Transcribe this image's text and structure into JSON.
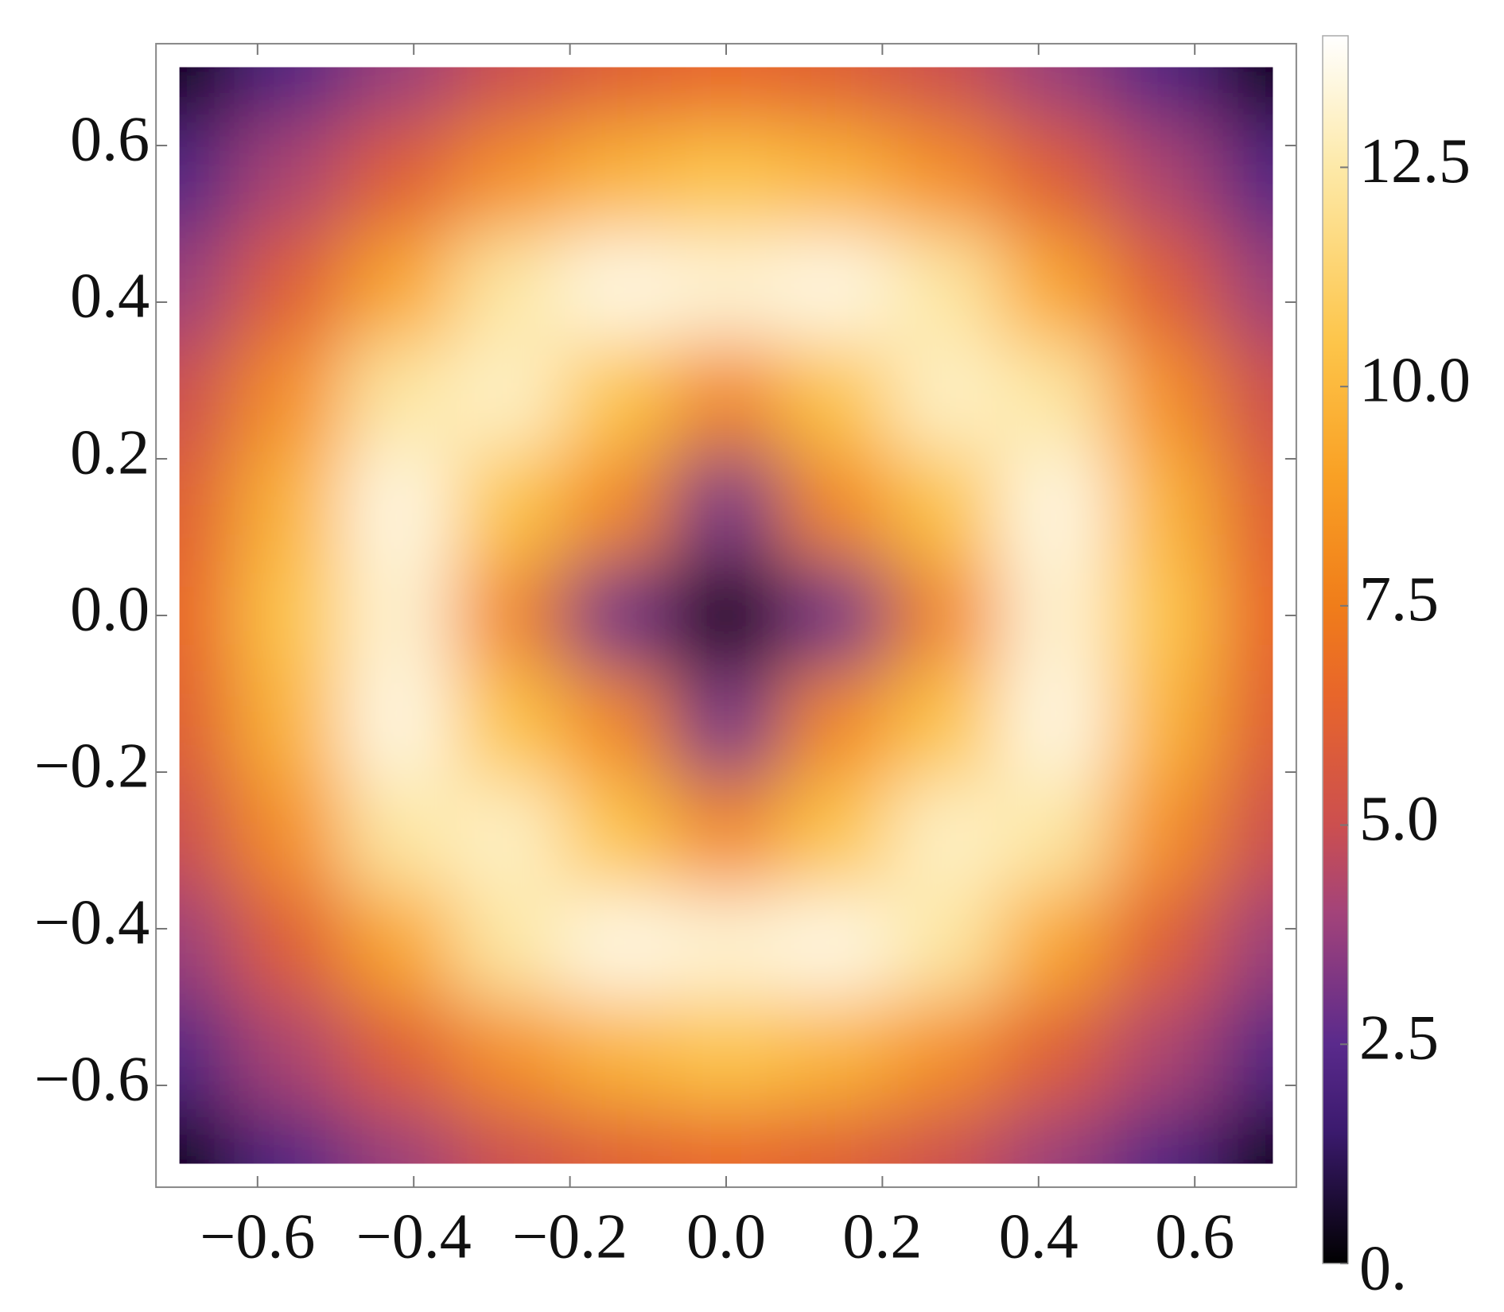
{
  "chart_data": {
    "type": "heatmap",
    "x": [
      -0.7,
      -0.56,
      -0.42,
      -0.28,
      -0.14,
      0,
      0.14,
      0.28,
      0.42,
      0.56,
      0.7
    ],
    "y": [
      -0.7,
      -0.56,
      -0.42,
      -0.28,
      -0.14,
      0,
      0.14,
      0.28,
      0.42,
      0.56,
      0.7
    ],
    "z": [
      [
        0,
        2.2,
        3.8,
        5,
        6,
        6.5,
        6,
        5,
        3.8,
        2.2,
        0
      ],
      [
        2.2,
        4.2,
        6,
        8.3,
        9.8,
        10.5,
        9.8,
        8.3,
        6,
        4.2,
        2.2
      ],
      [
        3.8,
        6,
        9.2,
        12.4,
        13.5,
        13.2,
        13.5,
        12.4,
        9.2,
        6,
        3.8
      ],
      [
        5,
        8.3,
        12.4,
        13,
        10.5,
        8,
        10.5,
        13,
        12.4,
        8.3,
        5
      ],
      [
        6,
        9.8,
        13.5,
        10.5,
        8,
        3,
        8,
        10.5,
        13.5,
        9.8,
        6
      ],
      [
        6.5,
        10.5,
        13.2,
        8,
        3,
        0,
        3,
        8,
        13.2,
        10.5,
        6.5
      ],
      [
        6,
        9.8,
        13.5,
        10.5,
        8,
        3,
        8,
        10.5,
        13.5,
        9.8,
        6
      ],
      [
        5,
        8.3,
        12.4,
        13,
        10.5,
        8,
        10.5,
        13,
        12.4,
        8.3,
        5
      ],
      [
        3.8,
        6,
        9.2,
        12.4,
        13.5,
        13.2,
        13.5,
        12.4,
        9.2,
        6,
        3.8
      ],
      [
        2.2,
        4.2,
        6,
        8.3,
        9.8,
        10.5,
        9.8,
        8.3,
        6,
        4.2,
        2.2
      ],
      [
        0,
        2.2,
        3.8,
        5,
        6,
        6.5,
        6,
        5,
        3.8,
        2.2,
        0
      ]
    ],
    "xlim": [
      -0.73,
      0.73
    ],
    "ylim": [
      -0.73,
      0.73
    ],
    "xticks": [
      {
        "value": -0.6,
        "label": "−0.6"
      },
      {
        "value": -0.4,
        "label": "−0.4"
      },
      {
        "value": -0.2,
        "label": "−0.2"
      },
      {
        "value": 0,
        "label": "0.0"
      },
      0.2,
      0.4,
      0.6
    ],
    "yticks": [
      {
        "value": -0.6,
        "label": "−0.6"
      },
      {
        "value": -0.4,
        "label": "−0.4"
      },
      {
        "value": -0.2,
        "label": "−0.2"
      },
      {
        "value": 0,
        "label": "0.0"
      },
      0.2,
      0.4,
      0.6
    ],
    "zlim": [
      0,
      14
    ],
    "zticks": [
      {
        "value": 0,
        "label": "0."
      },
      2.5,
      {
        "value": 5,
        "label": "5.0"
      },
      7.5,
      {
        "value": 10,
        "label": "10.0"
      },
      12.5
    ],
    "colorscale": [
      {
        "value": 0,
        "color": "#000000"
      },
      {
        "value": 1.5,
        "color": "#3b1a6e"
      },
      {
        "value": 2.5,
        "color": "#5a2a8c"
      },
      {
        "value": 4,
        "color": "#a3437a"
      },
      {
        "value": 5,
        "color": "#cc4f4f"
      },
      {
        "value": 6.5,
        "color": "#e8662a"
      },
      {
        "value": 7.5,
        "color": "#f07d1a"
      },
      {
        "value": 9,
        "color": "#f9a125"
      },
      {
        "value": 10.5,
        "color": "#fdc54a"
      },
      {
        "value": 12.5,
        "color": "#fde9a8"
      },
      {
        "value": 14,
        "color": "#ffffff"
      }
    ]
  }
}
